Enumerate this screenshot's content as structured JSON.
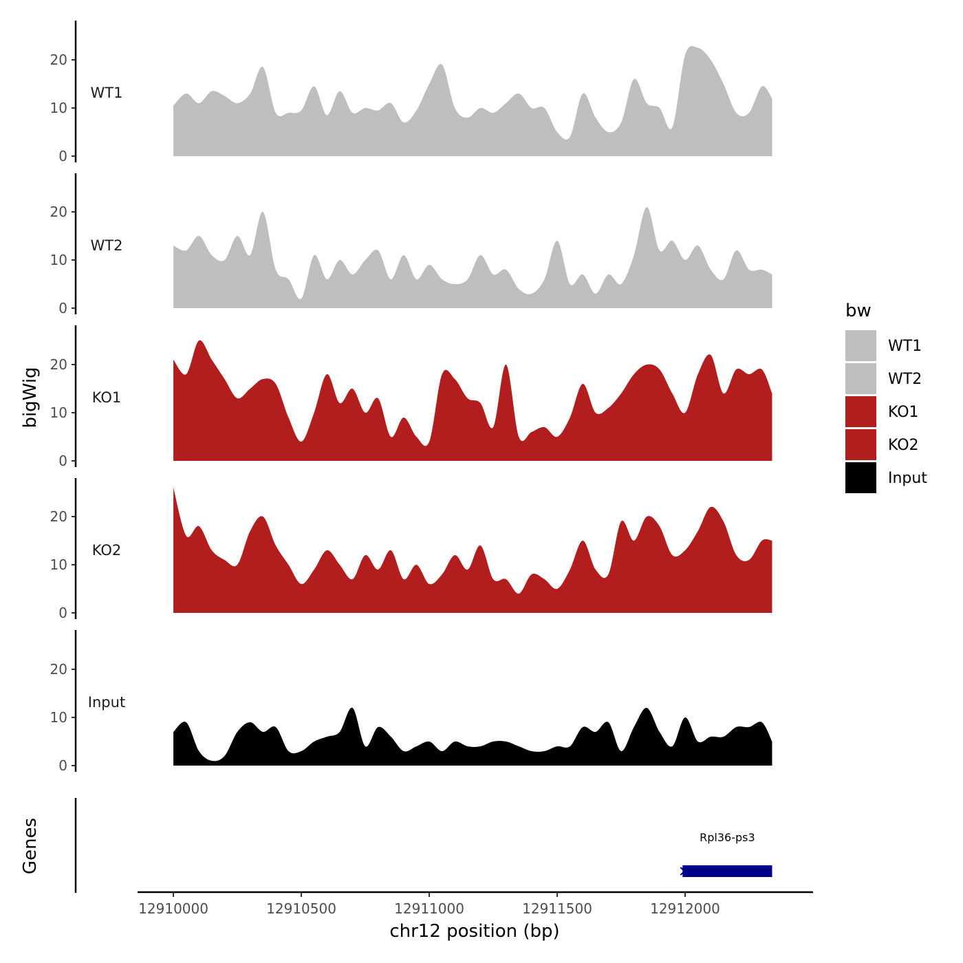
{
  "chart_data": {
    "type": "area",
    "ylabel": "bigWig",
    "xlabel": "chr12 position (bp)",
    "genes_label": "Genes",
    "xlim": [
      12909860,
      12912500
    ],
    "ylim": [
      0,
      28
    ],
    "yticks": [
      0,
      10,
      20
    ],
    "xticks": [
      12910000,
      12910500,
      12911000,
      12911500,
      12912000
    ],
    "legend": {
      "title": "bw",
      "position": "right",
      "entries": [
        {
          "label": "WT1",
          "color": "#bebebe"
        },
        {
          "label": "WT2",
          "color": "#bebebe"
        },
        {
          "label": "KO1",
          "color": "#b21e1e"
        },
        {
          "label": "KO2",
          "color": "#b21e1e"
        },
        {
          "label": "Input",
          "color": "#000000"
        }
      ]
    },
    "x": [
      12910000,
      12910050,
      12910100,
      12910150,
      12910200,
      12910250,
      12910300,
      12910350,
      12910400,
      12910450,
      12910500,
      12910550,
      12910600,
      12910650,
      12910700,
      12910750,
      12910800,
      12910850,
      12910900,
      12910950,
      12911000,
      12911050,
      12911100,
      12911150,
      12911200,
      12911250,
      12911300,
      12911350,
      12911400,
      12911450,
      12911500,
      12911550,
      12911600,
      12911650,
      12911700,
      12911750,
      12911800,
      12911850,
      12911900,
      12911950,
      12912000,
      12912050,
      12912100,
      12912150,
      12912200,
      12912250,
      12912300,
      12912340
    ],
    "series": [
      {
        "name": "WT1",
        "color": "#bebebe",
        "values": [
          10.5,
          13,
          11,
          13.5,
          12.5,
          11,
          13,
          18.5,
          9,
          9,
          9.5,
          14.5,
          8.5,
          13.5,
          9,
          10,
          9.5,
          11,
          7,
          9.5,
          15,
          19,
          10,
          8,
          10,
          9,
          11,
          13,
          10,
          10,
          5,
          4,
          13,
          8,
          5,
          7,
          16,
          11,
          10,
          6,
          21,
          22.5,
          20,
          15,
          9,
          9,
          14.5,
          12
        ]
      },
      {
        "name": "WT2",
        "color": "#bebebe",
        "values": [
          13,
          12,
          15,
          11,
          10,
          15,
          11,
          20,
          8,
          6,
          2,
          11,
          6,
          10,
          7,
          10,
          12,
          6,
          11,
          6,
          9,
          6,
          5,
          6,
          11,
          7,
          8,
          4,
          3,
          6,
          14,
          5,
          7,
          3,
          7,
          5,
          11,
          21,
          12,
          14,
          10,
          13,
          8,
          6,
          12,
          8,
          8,
          7
        ]
      },
      {
        "name": "KO1",
        "color": "#b21e1e",
        "values": [
          21,
          18,
          25,
          21,
          17,
          13,
          15,
          17,
          16,
          9,
          4,
          10,
          18,
          12,
          15,
          10,
          13,
          5,
          9,
          5,
          4,
          18,
          17,
          13,
          12,
          7,
          20,
          5,
          6,
          7,
          5,
          9,
          16,
          10,
          11,
          14,
          18,
          20,
          19,
          14,
          10,
          18,
          22,
          14,
          19,
          18,
          19,
          14
        ]
      },
      {
        "name": "KO2",
        "color": "#b21e1e",
        "values": [
          26,
          16,
          18,
          13,
          11,
          10,
          17,
          20,
          14,
          10,
          6,
          9,
          13,
          10,
          7,
          12,
          9,
          13,
          7,
          10,
          6,
          8,
          12,
          9,
          14,
          7,
          7,
          4,
          8,
          7,
          5,
          9,
          15,
          9,
          8,
          19,
          15,
          20,
          18,
          12,
          13,
          17,
          22,
          19,
          12,
          11,
          15,
          15
        ]
      },
      {
        "name": "Input",
        "color": "#000000",
        "values": [
          7,
          9,
          3,
          1,
          2,
          7,
          9,
          7,
          8,
          3,
          3,
          5,
          6,
          7,
          12,
          4,
          8,
          6,
          3,
          4,
          5,
          3,
          5,
          4,
          4,
          5,
          5,
          4,
          3,
          3,
          4,
          4,
          8,
          7,
          9,
          3,
          8,
          12,
          7,
          4,
          10,
          5,
          6,
          6,
          8,
          8,
          9,
          5
        ]
      }
    ],
    "genes": [
      {
        "name": "Rpl36-ps3",
        "start": 12911990,
        "end": 12912340,
        "color": "#00008b"
      }
    ]
  }
}
